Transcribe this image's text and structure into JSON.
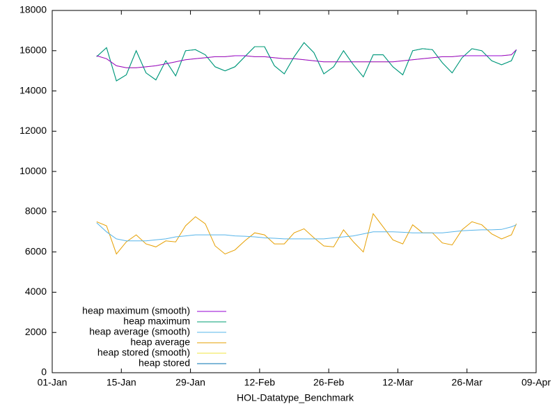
{
  "chart_data": {
    "type": "line",
    "xlabel": "HOL-Datatype_Benchmark",
    "x": [
      "10-Jan",
      "12-Jan",
      "14-Jan",
      "16-Jan",
      "18-Jan",
      "20-Jan",
      "22-Jan",
      "24-Jan",
      "26-Jan",
      "28-Jan",
      "30-Jan",
      "01-Feb",
      "03-Feb",
      "05-Feb",
      "07-Feb",
      "09-Feb",
      "11-Feb",
      "13-Feb",
      "15-Feb",
      "17-Feb",
      "19-Feb",
      "21-Feb",
      "23-Feb",
      "25-Feb",
      "27-Feb",
      "01-Mar",
      "03-Mar",
      "05-Mar",
      "07-Mar",
      "09-Mar",
      "11-Mar",
      "13-Mar",
      "15-Mar",
      "17-Mar",
      "19-Mar",
      "21-Mar",
      "23-Mar",
      "25-Mar",
      "27-Mar",
      "29-Mar",
      "31-Mar",
      "02-Apr",
      "04-Apr",
      "05-Apr"
    ],
    "xlim": [
      "01-Jan",
      "09-Apr"
    ],
    "xticks": [
      "01-Jan",
      "15-Jan",
      "29-Jan",
      "12-Feb",
      "26-Feb",
      "12-Mar",
      "26-Mar",
      "09-Apr"
    ],
    "ylim": [
      0,
      18000
    ],
    "yticks": [
      0,
      2000,
      4000,
      6000,
      8000,
      10000,
      12000,
      14000,
      16000,
      18000
    ],
    "legend": "bottom left",
    "series": [
      {
        "name": "heap maximum (smooth)",
        "color": "#9400d3",
        "values": [
          15750,
          15600,
          15250,
          15150,
          15150,
          15200,
          15250,
          15350,
          15450,
          15550,
          15600,
          15650,
          15700,
          15700,
          15750,
          15750,
          15700,
          15700,
          15650,
          15600,
          15600,
          15550,
          15500,
          15450,
          15450,
          15450,
          15450,
          15450,
          15450,
          15450,
          15450,
          15500,
          15550,
          15600,
          15650,
          15700,
          15700,
          15750,
          15750,
          15750,
          15750,
          15750,
          15800,
          16050
        ]
      },
      {
        "name": "heap maximum",
        "color": "#009e73",
        "values": [
          15700,
          16150,
          14500,
          14800,
          16000,
          14900,
          14550,
          15500,
          14750,
          16000,
          16050,
          15800,
          15200,
          15000,
          15200,
          15700,
          16200,
          16200,
          15250,
          14850,
          15700,
          16400,
          15900,
          14850,
          15200,
          16000,
          15300,
          14700,
          15800,
          15800,
          15200,
          14800,
          16000,
          16100,
          16050,
          15400,
          14900,
          15650,
          16100,
          16000,
          15500,
          15300,
          15500,
          16050
        ]
      },
      {
        "name": "heap average (smooth)",
        "color": "#56b4e9",
        "values": [
          7450,
          7000,
          6650,
          6550,
          6550,
          6550,
          6600,
          6650,
          6750,
          6800,
          6850,
          6850,
          6850,
          6850,
          6800,
          6780,
          6750,
          6700,
          6680,
          6650,
          6650,
          6650,
          6650,
          6650,
          6700,
          6750,
          6800,
          6900,
          7000,
          7000,
          7000,
          6980,
          6950,
          6950,
          6950,
          6950,
          7000,
          7050,
          7080,
          7100,
          7100,
          7120,
          7250,
          7350
        ]
      },
      {
        "name": "heap average",
        "color": "#e69f00",
        "values": [
          7500,
          7300,
          5900,
          6500,
          6850,
          6400,
          6250,
          6550,
          6500,
          7300,
          7750,
          7400,
          6300,
          5900,
          6100,
          6550,
          6950,
          6850,
          6400,
          6400,
          6950,
          7150,
          6700,
          6300,
          6250,
          7100,
          6500,
          6000,
          7900,
          7250,
          6600,
          6400,
          7350,
          6950,
          6950,
          6450,
          6350,
          7100,
          7500,
          7350,
          6900,
          6650,
          6850,
          7400
        ]
      },
      {
        "name": "heap stored (smooth)",
        "color": "#f0e442",
        "values": [
          15750,
          15600,
          15250,
          15150,
          15150,
          15200,
          15250,
          15350,
          15450,
          15550,
          15600,
          15650,
          15700,
          15700,
          15750,
          15750,
          15700,
          15700,
          15650,
          15600,
          15600,
          15550,
          15500,
          15450,
          15450,
          15450,
          15450,
          15450,
          15450,
          15450,
          15450,
          15500,
          15550,
          15600,
          15650,
          15700,
          15700,
          15750,
          15750,
          15750,
          15750,
          15750,
          15800,
          16050
        ]
      },
      {
        "name": "heap stored",
        "color": "#0072b2",
        "values": [
          15700,
          16150,
          14500,
          14800,
          16000,
          14900,
          14550,
          15500,
          14750,
          16000,
          16050,
          15800,
          15200,
          15000,
          15200,
          15700,
          16200,
          16200,
          15250,
          14850,
          15700,
          16400,
          15900,
          14850,
          15200,
          16000,
          15300,
          14700,
          15800,
          15800,
          15200,
          14800,
          16000,
          16100,
          16050,
          15400,
          14900,
          15650,
          16100,
          16000,
          15500,
          15300,
          15500,
          16050
        ]
      }
    ]
  }
}
